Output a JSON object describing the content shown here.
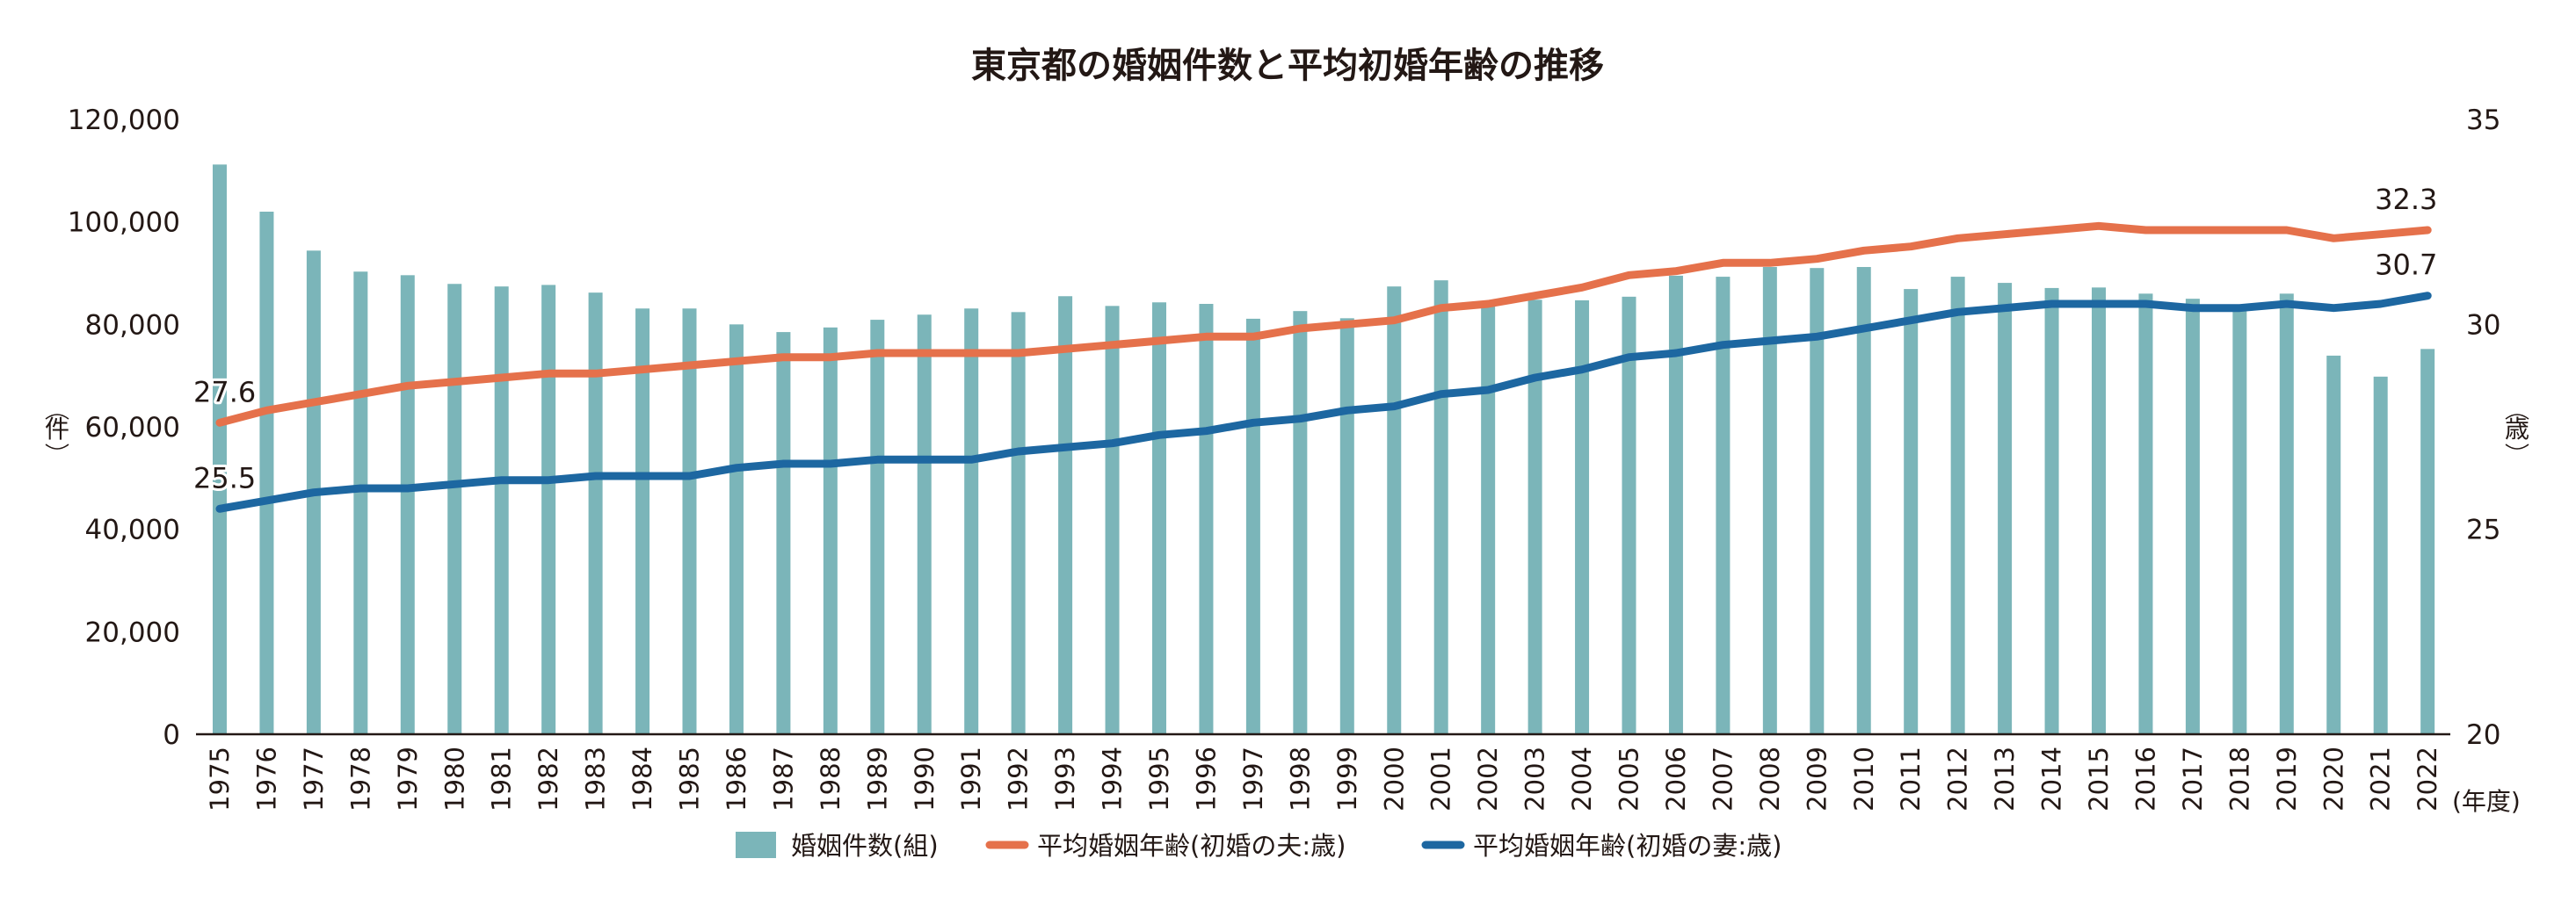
{
  "chart_data": {
    "type": "bar",
    "title": "東京都の婚姻件数と平均初婚年齢の推移",
    "xlabel": "(年度)",
    "ylabel_left": "件",
    "ylabel_right": "歳",
    "ylim_left": [
      0,
      120000
    ],
    "ylim_right": [
      20,
      35
    ],
    "yticks_left": [
      "0",
      "20,000",
      "40,000",
      "60,000",
      "80,000",
      "100,000",
      "120,000"
    ],
    "yticks_left_values": [
      0,
      20000,
      40000,
      60000,
      80000,
      100000,
      120000
    ],
    "yticks_right": [
      "20",
      "25",
      "30",
      "35"
    ],
    "yticks_right_values": [
      20,
      25,
      30,
      35
    ],
    "grid": false,
    "legend_position": "bottom",
    "categories": [
      "1975",
      "1976",
      "1977",
      "1978",
      "1979",
      "1980",
      "1981",
      "1982",
      "1983",
      "1984",
      "1985",
      "1986",
      "1987",
      "1988",
      "1989",
      "1990",
      "1991",
      "1992",
      "1993",
      "1994",
      "1995",
      "1996",
      "1997",
      "1998",
      "1999",
      "2000",
      "2001",
      "2002",
      "2003",
      "2004",
      "2005",
      "2006",
      "2007",
      "2008",
      "2009",
      "2010",
      "2011",
      "2012",
      "2013",
      "2014",
      "2015",
      "2016",
      "2017",
      "2018",
      "2019",
      "2020",
      "2021",
      "2022"
    ],
    "series": [
      {
        "name": "婚姻件数(組)",
        "type": "bar",
        "axis": "left",
        "color": "#7bb5b9",
        "values": [
          111200,
          102000,
          94400,
          90300,
          89600,
          87900,
          87400,
          87700,
          86200,
          83100,
          83100,
          80000,
          78500,
          79400,
          80900,
          81900,
          83100,
          82400,
          85500,
          83600,
          84300,
          84000,
          81100,
          82600,
          81200,
          87400,
          88600,
          84000,
          84800,
          84700,
          85400,
          89500,
          89300,
          91200,
          91000,
          91200,
          86900,
          89300,
          88100,
          87100,
          87200,
          86000,
          85000,
          83000,
          86000,
          73900,
          69800,
          75200
        ]
      },
      {
        "name": "平均婚姻年齢(初婚の夫:歳)",
        "type": "line",
        "axis": "right",
        "color": "#e5714b",
        "values": [
          27.6,
          27.9,
          28.1,
          28.3,
          28.5,
          28.6,
          28.7,
          28.8,
          28.8,
          28.9,
          29.0,
          29.1,
          29.2,
          29.2,
          29.3,
          29.3,
          29.3,
          29.3,
          29.4,
          29.5,
          29.6,
          29.7,
          29.7,
          29.9,
          30.0,
          30.1,
          30.4,
          30.5,
          30.7,
          30.9,
          31.2,
          31.3,
          31.5,
          31.5,
          31.6,
          31.8,
          31.9,
          32.1,
          32.2,
          32.3,
          32.4,
          32.3,
          32.3,
          32.3,
          32.3,
          32.1,
          32.2,
          32.3
        ]
      },
      {
        "name": "平均婚姻年齢(初婚の妻:歳)",
        "type": "line",
        "axis": "right",
        "color": "#1d67a1",
        "values": [
          25.5,
          25.7,
          25.9,
          26.0,
          26.0,
          26.1,
          26.2,
          26.2,
          26.3,
          26.3,
          26.3,
          26.5,
          26.6,
          26.6,
          26.7,
          26.7,
          26.7,
          26.9,
          27.0,
          27.1,
          27.3,
          27.4,
          27.6,
          27.7,
          27.9,
          28.0,
          28.3,
          28.4,
          28.7,
          28.9,
          29.2,
          29.3,
          29.5,
          29.6,
          29.7,
          29.9,
          30.1,
          30.3,
          30.4,
          30.5,
          30.5,
          30.5,
          30.4,
          30.4,
          30.5,
          30.4,
          30.5,
          30.7
        ]
      }
    ],
    "annotations": [
      {
        "series": 1,
        "index": 0,
        "label": "27.6"
      },
      {
        "series": 2,
        "index": 0,
        "label": "25.5"
      },
      {
        "series": 1,
        "index": 47,
        "label": "32.3"
      },
      {
        "series": 2,
        "index": 47,
        "label": "30.7"
      }
    ]
  }
}
